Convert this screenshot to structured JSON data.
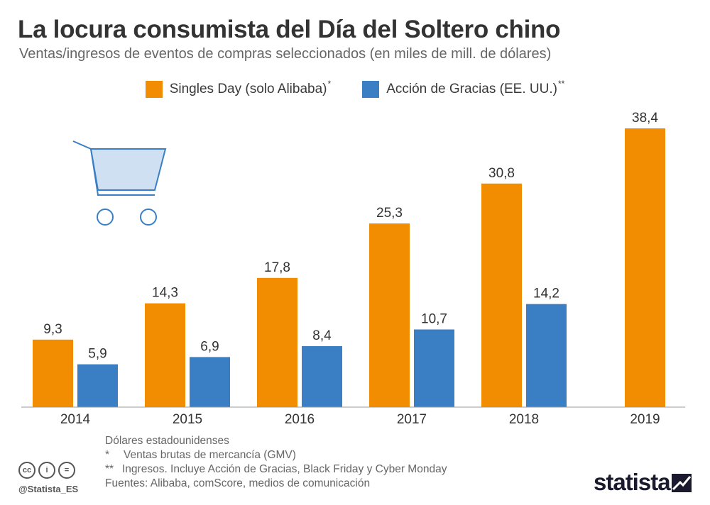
{
  "title": "La locura consumista del Día del Soltero chino",
  "subtitle": "Ventas/ingresos de eventos de compras seleccionados (en miles de mill. de dólares)",
  "legend": [
    {
      "label": "Singles Day (solo Alibaba)",
      "mark": "*",
      "color": "#f28c00"
    },
    {
      "label": "Acción de Gracias (EE. UU.)",
      "mark": "**",
      "color": "#3a7fc4"
    }
  ],
  "notes": {
    "line1": "Dólares estadounidenses",
    "star1": "*",
    "line2": "Ventas brutas de mercancía (GMV)",
    "star2": "**",
    "line3": "Ingresos. Incluye Acción de Gracias, Black Friday y Cyber Monday",
    "line4": "Fuentes: Alibaba, comScore, medios de comunicación"
  },
  "footer": {
    "handle": "@Statista_ES",
    "brand": "statista",
    "cc_icons": [
      "cc-icon",
      "by-icon",
      "nd-icon"
    ],
    "cc_glyphs": [
      "cc",
      "i",
      "="
    ]
  },
  "chart_data": {
    "type": "bar",
    "title": "La locura consumista del Día del Soltero chino",
    "subtitle": "Ventas/ingresos de eventos de compras seleccionados (en miles de mill. de dólares)",
    "xlabel": "",
    "ylabel": "",
    "categories": [
      "2014",
      "2015",
      "2016",
      "2017",
      "2018",
      "2019"
    ],
    "series": [
      {
        "name": "Singles Day (solo Alibaba)*",
        "color": "#f28c00",
        "values": [
          9.3,
          14.3,
          17.8,
          25.3,
          30.8,
          38.4
        ],
        "labels": [
          "9,3",
          "14,3",
          "17,8",
          "25,3",
          "30,8",
          "38,4"
        ]
      },
      {
        "name": "Acción de Gracias (EE. UU.)**",
        "color": "#3a7fc4",
        "values": [
          5.9,
          6.9,
          8.4,
          10.7,
          14.2,
          null
        ],
        "labels": [
          "5,9",
          "6,9",
          "8,4",
          "10,7",
          "14,2",
          ""
        ]
      }
    ],
    "ylim": [
      0,
      38.4
    ],
    "grid": false,
    "legend_position": "top-center"
  }
}
